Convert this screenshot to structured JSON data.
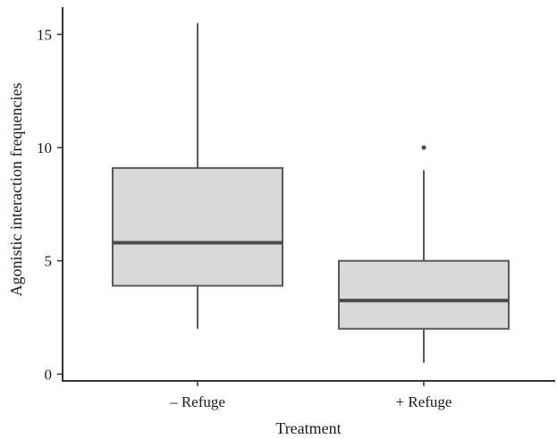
{
  "chart_data": {
    "type": "boxplot",
    "title": "",
    "xlabel": "Treatment",
    "ylabel": "Agonistic interaction frequencies",
    "ylim": [
      -0.3,
      16.2
    ],
    "yticks": [
      0,
      5,
      10,
      15
    ],
    "grid": false,
    "legend": "none",
    "categories": [
      "– Refuge",
      "+ Refuge"
    ],
    "boxes": [
      {
        "category": "– Refuge",
        "whisker_low": 2,
        "q1": 3.9,
        "median": 5.8,
        "q3": 9.1,
        "whisker_high": 15.5,
        "outliers": []
      },
      {
        "category": "+ Refuge",
        "whisker_low": 0.5,
        "q1": 2.0,
        "median": 3.25,
        "q3": 5.0,
        "whisker_high": 9.0,
        "outliers": [
          10
        ]
      }
    ],
    "colors": {
      "box_fill": "#d9d9da",
      "box_stroke": "#595959",
      "median": "#4d4d4d",
      "axis": "#333333",
      "outlier": "#4d4d4d"
    }
  }
}
